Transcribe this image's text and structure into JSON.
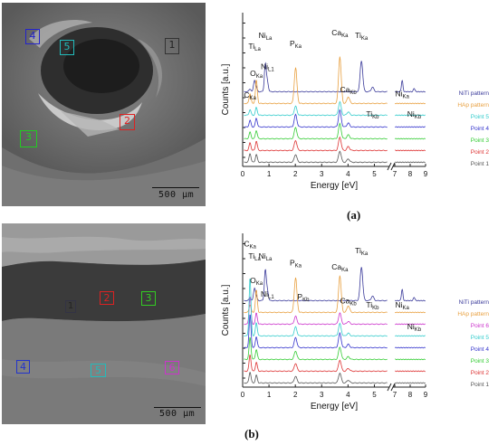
{
  "panels": [
    {
      "label": "(a)",
      "scale_text": "500 μm",
      "markers": [
        {
          "text": "1",
          "color": "#333333"
        },
        {
          "text": "2",
          "color": "#dd2222"
        },
        {
          "text": "3",
          "color": "#22cc22"
        },
        {
          "text": "4",
          "color": "#2222cc"
        },
        {
          "text": "5",
          "color": "#22bbbb"
        }
      ]
    },
    {
      "label": "(b)",
      "scale_text": "500 μm",
      "markers": [
        {
          "text": "1",
          "color": "#333344"
        },
        {
          "text": "2",
          "color": "#dd2222"
        },
        {
          "text": "3",
          "color": "#33cc22"
        },
        {
          "text": "4",
          "color": "#2233cc"
        },
        {
          "text": "5",
          "color": "#22bbbb"
        },
        {
          "text": "6",
          "color": "#cc33cc"
        }
      ]
    }
  ],
  "chart_data": [
    {
      "type": "line",
      "xlabel": "Energy [eV]",
      "ylabel": "Counts [a.u.]",
      "xlim": [
        0,
        9
      ],
      "x_break": [
        5.5,
        7
      ],
      "xticks": [
        "0",
        "1",
        "2",
        "3",
        "4",
        "5",
        "7",
        "8",
        "9"
      ],
      "series": [
        {
          "name": "NiTi pattern",
          "color": "#3a3a9a",
          "offset": 8,
          "peaks": [
            [
              0.28,
              5
            ],
            [
              0.45,
              20
            ],
            [
              0.52,
              6
            ],
            [
              0.86,
              50
            ],
            [
              0.94,
              18
            ],
            [
              4.51,
              55
            ],
            [
              4.93,
              8
            ],
            [
              7.48,
              20
            ],
            [
              8.26,
              6
            ]
          ]
        },
        {
          "name": "HAp pattern",
          "color": "#e8a040",
          "offset": 7,
          "peaks": [
            [
              0.28,
              18
            ],
            [
              0.52,
              42
            ],
            [
              2.01,
              64
            ],
            [
              3.69,
              84
            ],
            [
              4.01,
              12
            ]
          ]
        },
        {
          "name": "Point 5",
          "color": "#33cccc",
          "offset": 6,
          "peaks": [
            [
              0.28,
              10
            ],
            [
              0.52,
              14
            ],
            [
              2.01,
              16
            ],
            [
              3.69,
              24
            ],
            [
              4.01,
              6
            ]
          ]
        },
        {
          "name": "Point 4",
          "color": "#3333cc",
          "offset": 5,
          "peaks": [
            [
              0.28,
              12
            ],
            [
              0.52,
              16
            ],
            [
              2.01,
              22
            ],
            [
              3.69,
              30
            ],
            [
              4.01,
              7
            ]
          ]
        },
        {
          "name": "Point 3",
          "color": "#33cc33",
          "offset": 4,
          "peaks": [
            [
              0.28,
              12
            ],
            [
              0.52,
              15
            ],
            [
              2.01,
              20
            ],
            [
              3.69,
              27
            ],
            [
              4.01,
              7
            ]
          ]
        },
        {
          "name": "Point 2",
          "color": "#dd3333",
          "offset": 3,
          "peaks": [
            [
              0.28,
              14
            ],
            [
              0.52,
              17
            ],
            [
              2.01,
              18
            ],
            [
              3.69,
              24
            ],
            [
              4.01,
              7
            ]
          ]
        },
        {
          "name": "Point 1",
          "color": "#555555",
          "offset": 2,
          "peaks": [
            [
              0.28,
              16
            ],
            [
              0.52,
              14
            ],
            [
              2.01,
              14
            ],
            [
              3.69,
              20
            ],
            [
              4.01,
              6
            ]
          ]
        }
      ],
      "annotations": [
        {
          "main": "C",
          "sub": "Ka",
          "x": 0.28,
          "y": 44
        },
        {
          "main": "Ti",
          "sub": "La",
          "x": 0.45,
          "y": 80
        },
        {
          "main": "O",
          "sub": "Ka",
          "x": 0.52,
          "y": 60
        },
        {
          "main": "Ni",
          "sub": "La",
          "x": 0.86,
          "y": 88
        },
        {
          "main": "Ni",
          "sub": "L1",
          "x": 0.94,
          "y": 65
        },
        {
          "main": "P",
          "sub": "Ka",
          "x": 2.01,
          "y": 82
        },
        {
          "main": "Ca",
          "sub": "Ka",
          "x": 3.69,
          "y": 90
        },
        {
          "main": "Ti",
          "sub": "Ka",
          "x": 4.51,
          "y": 88
        },
        {
          "main": "Ca",
          "sub": "Kb",
          "x": 4.01,
          "y": 48
        },
        {
          "main": "Ti",
          "sub": "Kb",
          "x": 4.93,
          "y": 30
        },
        {
          "main": "Ni",
          "sub": "Ka",
          "x": 7.48,
          "y": 45
        },
        {
          "main": "Ni",
          "sub": "Kb",
          "x": 8.26,
          "y": 30
        }
      ]
    },
    {
      "type": "line",
      "xlabel": "Energy [eV]",
      "ylabel": "Counts [a.u.]",
      "xlim": [
        0,
        9
      ],
      "x_break": [
        5.5,
        7
      ],
      "xticks": [
        "0",
        "1",
        "2",
        "3",
        "4",
        "5",
        "7",
        "8",
        "9"
      ],
      "series": [
        {
          "name": "NiTi pattern",
          "color": "#3a3a9a",
          "offset": 9,
          "peaks": [
            [
              0.28,
              5
            ],
            [
              0.45,
              22
            ],
            [
              0.52,
              6
            ],
            [
              0.86,
              55
            ],
            [
              0.94,
              18
            ],
            [
              4.51,
              60
            ],
            [
              4.93,
              8
            ],
            [
              7.48,
              20
            ],
            [
              8.26,
              6
            ]
          ]
        },
        {
          "name": "HAp pattern",
          "color": "#e8a040",
          "offset": 8,
          "peaks": [
            [
              0.28,
              14
            ],
            [
              0.52,
              40
            ],
            [
              2.01,
              62
            ],
            [
              3.69,
              66
            ],
            [
              4.01,
              12
            ]
          ]
        },
        {
          "name": "Point 6",
          "color": "#cc33cc",
          "offset": 7,
          "peaks": [
            [
              0.28,
              50
            ],
            [
              0.52,
              20
            ],
            [
              2.01,
              14
            ],
            [
              3.69,
              20
            ],
            [
              4.01,
              5
            ]
          ]
        },
        {
          "name": "Point 5",
          "color": "#33cccc",
          "offset": 6,
          "peaks": [
            [
              0.28,
              105
            ],
            [
              0.52,
              24
            ],
            [
              2.01,
              16
            ],
            [
              3.69,
              22
            ],
            [
              4.01,
              5
            ]
          ]
        },
        {
          "name": "Point 4",
          "color": "#3333cc",
          "offset": 5,
          "peaks": [
            [
              0.28,
              60
            ],
            [
              0.52,
              20
            ],
            [
              2.01,
              18
            ],
            [
              3.69,
              26
            ],
            [
              4.01,
              6
            ]
          ]
        },
        {
          "name": "Point 3",
          "color": "#33cc33",
          "offset": 4,
          "peaks": [
            [
              0.28,
              40
            ],
            [
              0.52,
              18
            ],
            [
              2.01,
              15
            ],
            [
              3.69,
              22
            ],
            [
              4.01,
              5
            ]
          ]
        },
        {
          "name": "Point 2",
          "color": "#dd3333",
          "offset": 3,
          "peaks": [
            [
              0.28,
              30
            ],
            [
              0.52,
              16
            ],
            [
              2.01,
              14
            ],
            [
              3.69,
              20
            ],
            [
              4.01,
              5
            ]
          ]
        },
        {
          "name": "Point 1",
          "color": "#555555",
          "offset": 2,
          "peaks": [
            [
              0.28,
              20
            ],
            [
              0.52,
              14
            ],
            [
              2.01,
              12
            ],
            [
              3.69,
              18
            ],
            [
              4.01,
              5
            ]
          ]
        }
      ],
      "annotations": [
        {
          "main": "C",
          "sub": "Ka",
          "x": 0.28,
          "y": 97
        },
        {
          "main": "Ti",
          "sub": "La",
          "x": 0.45,
          "y": 88
        },
        {
          "main": "O",
          "sub": "Ka",
          "x": 0.52,
          "y": 70
        },
        {
          "main": "Ni",
          "sub": "La",
          "x": 0.86,
          "y": 88
        },
        {
          "main": "Ni",
          "sub": "L1",
          "x": 0.94,
          "y": 60
        },
        {
          "main": "P",
          "sub": "Ka",
          "x": 2.01,
          "y": 83
        },
        {
          "main": "P",
          "sub": "Kb",
          "x": 2.3,
          "y": 58
        },
        {
          "main": "Ca",
          "sub": "Ka",
          "x": 3.69,
          "y": 80
        },
        {
          "main": "Ti",
          "sub": "Ka",
          "x": 4.51,
          "y": 92
        },
        {
          "main": "Ca",
          "sub": "Kb",
          "x": 4.01,
          "y": 55
        },
        {
          "main": "Ti",
          "sub": "Kb",
          "x": 4.93,
          "y": 52
        },
        {
          "main": "Ni",
          "sub": "Ka",
          "x": 7.48,
          "y": 52
        },
        {
          "main": "Ni",
          "sub": "Kb",
          "x": 8.26,
          "y": 36
        }
      ]
    }
  ]
}
